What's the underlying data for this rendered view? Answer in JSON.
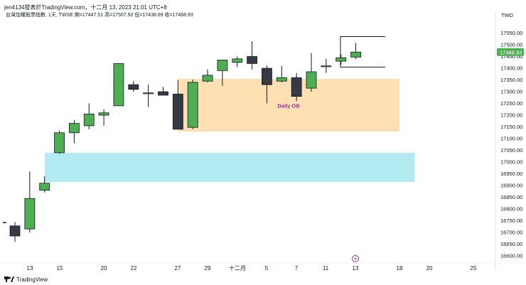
{
  "header": {
    "credit": "jen4134發表於TradingView.com，十二月 13, 2023 21:01 UTC+8",
    "subtitle": "台灣加權股票指數, 1天, TWSE  開=17447.51  高=17507.92  低=17438.69  收=17468.93",
    "currency": "TWD"
  },
  "footer": {
    "brand": "TradingView"
  },
  "colors": {
    "up": "#4caf50",
    "down": "#363a45",
    "orderblock": "#ffe0b2",
    "fvg": "#b2ebf2",
    "label": "#9c27b0",
    "price_tag": "#4caf50"
  },
  "chart_data": {
    "type": "candlestick",
    "x_ticks": [
      "13",
      "15",
      "20",
      "22",
      "27",
      "29",
      "十二月",
      "5",
      "7",
      "11",
      "13",
      "18",
      "20",
      "25"
    ],
    "y_ticks": [
      16600,
      16650,
      16700,
      16750,
      16800,
      16850,
      16900,
      16950,
      17000,
      17050,
      17100,
      17150,
      17200,
      17250,
      17300,
      17350,
      17400,
      17450,
      17500,
      17550
    ],
    "ylim": [
      16570,
      17600
    ],
    "last_price": "17468.93",
    "candles": [
      {
        "o": 16728,
        "h": 16745,
        "l": 16660,
        "c": 16685
      },
      {
        "o": 16715,
        "h": 16960,
        "l": 16700,
        "c": 16845
      },
      {
        "o": 16880,
        "h": 16940,
        "l": 16870,
        "c": 16910
      },
      {
        "o": 17040,
        "h": 17135,
        "l": 17035,
        "c": 17125
      },
      {
        "o": 17125,
        "h": 17180,
        "l": 17080,
        "c": 17165
      },
      {
        "o": 17155,
        "h": 17250,
        "l": 17140,
        "c": 17205
      },
      {
        "o": 17200,
        "h": 17225,
        "l": 17155,
        "c": 17210
      },
      {
        "o": 17240,
        "h": 17420,
        "l": 17240,
        "c": 17420
      },
      {
        "o": 17330,
        "h": 17345,
        "l": 17300,
        "c": 17310
      },
      {
        "o": 17295,
        "h": 17330,
        "l": 17235,
        "c": 17295
      },
      {
        "o": 17300,
        "h": 17320,
        "l": 17285,
        "c": 17285
      },
      {
        "o": 17290,
        "h": 17350,
        "l": 17140,
        "c": 17140
      },
      {
        "o": 17148,
        "h": 17352,
        "l": 17140,
        "c": 17340
      },
      {
        "o": 17345,
        "h": 17395,
        "l": 17340,
        "c": 17370
      },
      {
        "o": 17390,
        "h": 17435,
        "l": 17325,
        "c": 17435
      },
      {
        "o": 17425,
        "h": 17450,
        "l": 17405,
        "c": 17440
      },
      {
        "o": 17450,
        "h": 17515,
        "l": 17395,
        "c": 17420
      },
      {
        "o": 17400,
        "h": 17412,
        "l": 17250,
        "c": 17330
      },
      {
        "o": 17345,
        "h": 17410,
        "l": 17340,
        "c": 17360
      },
      {
        "o": 17360,
        "h": 17380,
        "l": 17260,
        "c": 17280
      },
      {
        "o": 17315,
        "h": 17465,
        "l": 17300,
        "c": 17385
      },
      {
        "o": 17410,
        "h": 17440,
        "l": 17380,
        "c": 17410
      },
      {
        "o": 17430,
        "h": 17460,
        "l": 17415,
        "c": 17445
      },
      {
        "o": 17447.51,
        "h": 17507.92,
        "l": 17438.69,
        "c": 17468.93
      }
    ],
    "zones": [
      {
        "label": "Daily OB",
        "top": 17355,
        "bottom": 17130,
        "color_key": "orderblock"
      },
      {
        "label": "",
        "top": 17040,
        "bottom": 16915,
        "color_key": "fvg"
      }
    ],
    "brackets": [
      {
        "top": 17535,
        "bottom": 17405
      }
    ]
  }
}
